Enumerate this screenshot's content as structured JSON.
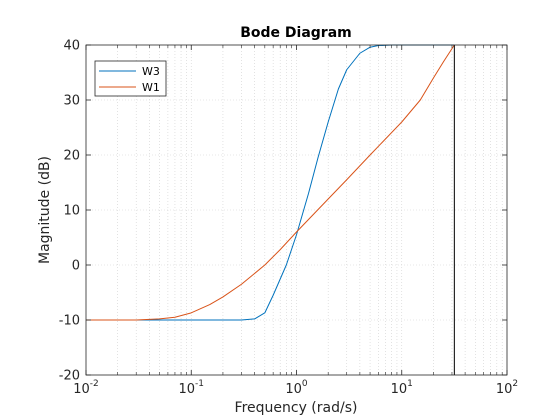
{
  "chart_data": {
    "type": "line",
    "title": "Bode Diagram",
    "xlabel": "Frequency  (rad/s)",
    "ylabel": "Magnitude (dB)",
    "xscale": "log",
    "xlim": [
      0.01,
      100
    ],
    "ylim": [
      -20,
      40
    ],
    "xticks": [
      0.01,
      0.1,
      1,
      10,
      100
    ],
    "xtick_labels": [
      {
        "base": "10",
        "exp": "-2"
      },
      {
        "base": "10",
        "exp": "-1"
      },
      {
        "base": "10",
        "exp": "0"
      },
      {
        "base": "10",
        "exp": "1"
      },
      {
        "base": "10",
        "exp": "2"
      }
    ],
    "yticks": [
      -20,
      -10,
      0,
      10,
      20,
      30,
      40
    ],
    "ytick_labels": [
      "-20",
      "-10",
      "0",
      "10",
      "20",
      "30",
      "40"
    ],
    "grid": "minor dotted",
    "legend_position": "top-left",
    "vertical_line_x": 31.6,
    "series": [
      {
        "name": "W3",
        "color": "#0072BD",
        "x": [
          0.01,
          0.05,
          0.1,
          0.2,
          0.3,
          0.4,
          0.5,
          0.6,
          0.8,
          1.0,
          1.3,
          1.6,
          2.0,
          2.5,
          3.0,
          4.0,
          5.0,
          6.0,
          8.0,
          10,
          20,
          31.6
        ],
        "y": [
          -10,
          -10,
          -10,
          -10,
          -10,
          -9.8,
          -8.7,
          -5.5,
          0,
          5.5,
          13,
          19.5,
          26,
          32,
          35.5,
          38.5,
          39.6,
          39.9,
          40,
          40,
          40,
          40
        ]
      },
      {
        "name": "W1",
        "color": "#D95319",
        "x": [
          0.01,
          0.03,
          0.05,
          0.07,
          0.1,
          0.15,
          0.2,
          0.3,
          0.5,
          0.7,
          1.0,
          2.0,
          3.0,
          5.0,
          10,
          15,
          20,
          25,
          31.6
        ],
        "y": [
          -10,
          -10,
          -9.8,
          -9.5,
          -8.7,
          -7.2,
          -5.8,
          -3.5,
          0,
          2.8,
          6,
          12,
          15.5,
          20,
          26,
          30,
          34,
          37,
          40
        ]
      }
    ]
  }
}
